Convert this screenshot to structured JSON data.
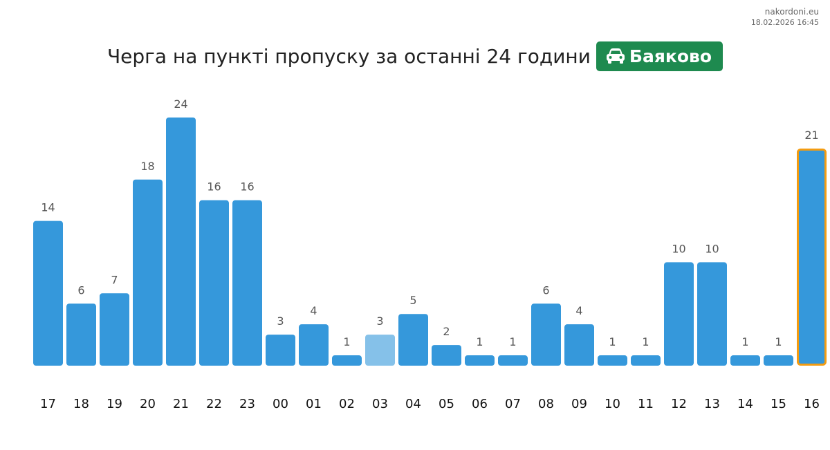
{
  "header": {
    "site": "nakordoni.eu",
    "timestamp": "18.02.2026 16:45",
    "title": "Черга на пункті пропуску за останні 24 години",
    "checkpoint": "Баяково",
    "checkpoint_icon": "car-icon"
  },
  "colors": {
    "bar": "#3598db",
    "bar_light": "#85c1e9",
    "highlight_border": "#f39c12",
    "badge": "#1e8a4f",
    "label": "#555555",
    "tick": "#111111"
  },
  "chart_data": {
    "type": "bar",
    "title": "Черга на пункті пропуску за останні 24 години",
    "xlabel": "",
    "ylabel": "",
    "categories": [
      "17",
      "18",
      "19",
      "20",
      "21",
      "22",
      "23",
      "00",
      "01",
      "02",
      "03",
      "04",
      "05",
      "06",
      "07",
      "08",
      "09",
      "10",
      "11",
      "12",
      "13",
      "14",
      "15",
      "16"
    ],
    "values": [
      14,
      6,
      7,
      18,
      24,
      16,
      16,
      3,
      4,
      1,
      3,
      5,
      2,
      1,
      1,
      6,
      4,
      1,
      1,
      10,
      10,
      1,
      1,
      21
    ],
    "ylim": [
      0,
      24
    ],
    "grid": false,
    "legend": "none",
    "light_index": 10,
    "highlight_index": 23
  }
}
